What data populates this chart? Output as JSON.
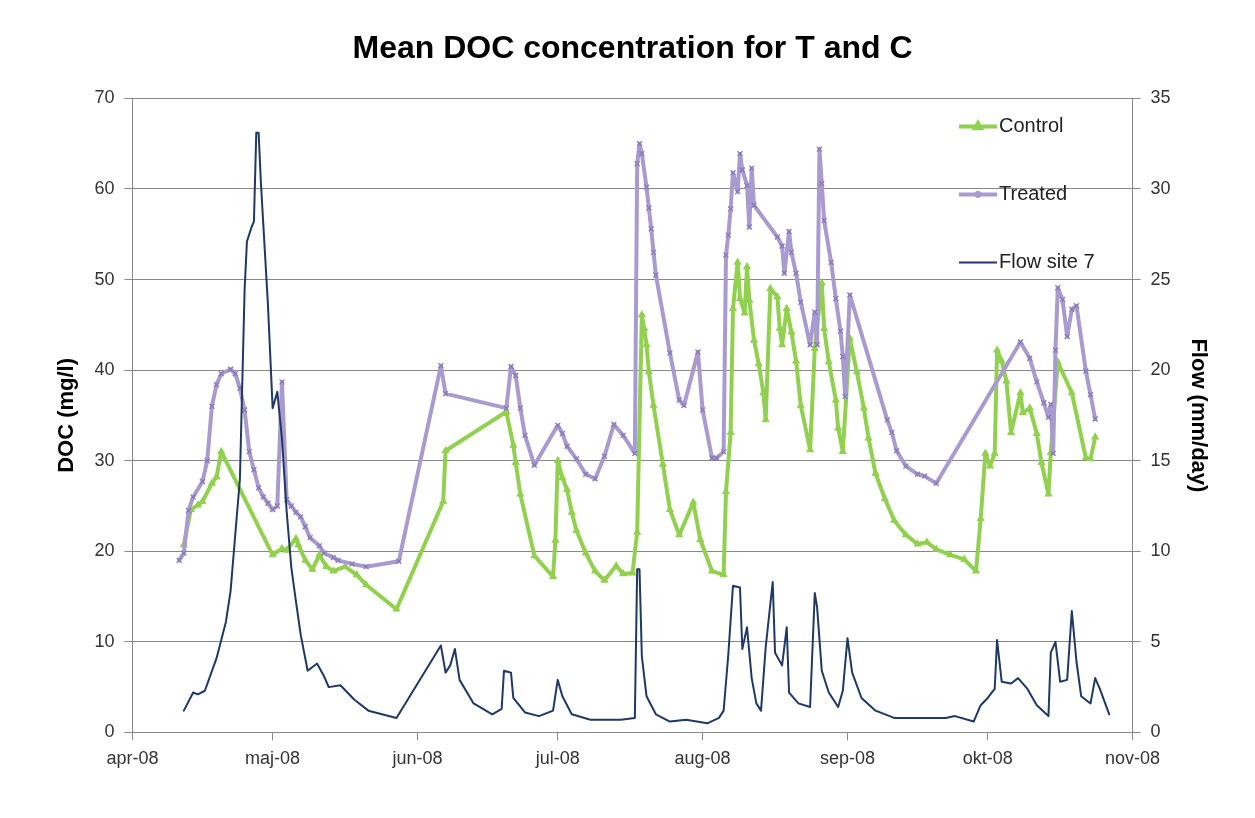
{
  "chart_data": {
    "type": "line",
    "title": "Mean DOC concentration for T and C",
    "ylabel": "DOC (mg/l)",
    "y2label": "Flow (mm/day)",
    "xlim": [
      "2008-04-01",
      "2008-11-01"
    ],
    "xticks": [
      {
        "value": "2008-04-01",
        "label": "apr-08"
      },
      {
        "value": "2008-05-01",
        "label": "maj-08"
      },
      {
        "value": "2008-06-01",
        "label": "jun-08"
      },
      {
        "value": "2008-07-01",
        "label": "jul-08"
      },
      {
        "value": "2008-08-01",
        "label": "aug-08"
      },
      {
        "value": "2008-09-01",
        "label": "sep-08"
      },
      {
        "value": "2008-10-01",
        "label": "okt-08"
      },
      {
        "value": "2008-11-01",
        "label": "nov-08"
      }
    ],
    "ylim": [
      0,
      70
    ],
    "yticks": [
      0,
      10,
      20,
      30,
      40,
      50,
      60,
      70
    ],
    "y2lim": [
      0,
      35
    ],
    "y2ticks": [
      0,
      5,
      10,
      15,
      20,
      25,
      30,
      35
    ],
    "grid": "y",
    "legend": "top right",
    "series": [
      {
        "name": "Control",
        "color": "#92d050",
        "marker": "triangle",
        "x": [
          "2008-04-12",
          "2008-04-13T12:00",
          "2008-04-15",
          "2008-04-16",
          "2008-04-18",
          "2008-04-19",
          "2008-04-20",
          "2008-05-01",
          "2008-05-03",
          "2008-05-04",
          "2008-05-06",
          "2008-05-06T12:00",
          "2008-05-08",
          "2008-05-09T12:00",
          "2008-05-11",
          "2008-05-12T12:00",
          "2008-05-14",
          "2008-05-16T12:00",
          "2008-05-19",
          "2008-05-21",
          "2008-05-27T12:00",
          "2008-06-06T12:00",
          "2008-06-07",
          "2008-06-20",
          "2008-06-21T12:00",
          "2008-06-22",
          "2008-06-23",
          "2008-06-26",
          "2008-06-30",
          "2008-06-30T12:00",
          "2008-07-01",
          "2008-07-02",
          "2008-07-03",
          "2008-07-04",
          "2008-07-05",
          "2008-07-07",
          "2008-07-09",
          "2008-07-11",
          "2008-07-13T12:00",
          "2008-07-15",
          "2008-07-17",
          "2008-07-18",
          "2008-07-19",
          "2008-07-19T12:00",
          "2008-07-20",
          "2008-07-20T12:00",
          "2008-07-21T12:00",
          "2008-07-23T12:00",
          "2008-07-25",
          "2008-07-27",
          "2008-07-30",
          "2008-07-31T12:00",
          "2008-08-03",
          "2008-08-05T12:00",
          "2008-08-06",
          "2008-08-07",
          "2008-08-07T12:00",
          "2008-08-08T12:00",
          "2008-08-09",
          "2008-08-10",
          "2008-08-10T12:00",
          "2008-08-11",
          "2008-08-12",
          "2008-08-13",
          "2008-08-14",
          "2008-08-14T12:00",
          "2008-08-15T12:00",
          "2008-08-17",
          "2008-08-17T12:00",
          "2008-08-18",
          "2008-08-19",
          "2008-08-20",
          "2008-08-21",
          "2008-08-22",
          "2008-08-24",
          "2008-08-25",
          "2008-08-26T12:00",
          "2008-08-27",
          "2008-08-28",
          "2008-08-29T12:00",
          "2008-08-30",
          "2008-08-31",
          "2008-09-01T12:00",
          "2008-09-03",
          "2008-09-04T12:00",
          "2008-09-05T12:00",
          "2008-09-07",
          "2008-09-09",
          "2008-09-11",
          "2008-09-13T12:00",
          "2008-09-16",
          "2008-09-18",
          "2008-09-20",
          "2008-09-23",
          "2008-09-26",
          "2008-09-28T12:00",
          "2008-09-29T12:00",
          "2008-09-30T12:00",
          "2008-10-01T12:00",
          "2008-10-02T12:00",
          "2008-10-03",
          "2008-10-04",
          "2008-10-05",
          "2008-10-06",
          "2008-10-08",
          "2008-10-08T12:00",
          "2008-10-10",
          "2008-10-11T12:00",
          "2008-10-12T12:00",
          "2008-10-14",
          "2008-10-14T12:00",
          "2008-10-16",
          "2008-10-19",
          "2008-10-22",
          "2008-10-23",
          "2008-10-24"
        ],
        "values": [
          20.7,
          24.6,
          25.1,
          25.5,
          27.5,
          28.2,
          31,
          19.6,
          20.3,
          20.1,
          21.4,
          20.7,
          19,
          18,
          19.6,
          18.3,
          17.8,
          18.3,
          17.4,
          16.3,
          13.6,
          25.5,
          31.1,
          35.4,
          31.7,
          29.8,
          26.3,
          19.5,
          17.2,
          21.2,
          30,
          28.1,
          26.8,
          24.3,
          22.3,
          19.8,
          17.8,
          16.8,
          18.4,
          17.5,
          17.6,
          22.1,
          46.1,
          44.6,
          42.8,
          39.8,
          36.1,
          29.6,
          24.6,
          21.8,
          25.4,
          21.3,
          17.8,
          17.4,
          26.6,
          33.1,
          46.8,
          51.9,
          47.9,
          46.3,
          51.4,
          47.7,
          43.3,
          40.7,
          37.5,
          34.5,
          49,
          48.1,
          44.6,
          42.8,
          46.8,
          44.2,
          41,
          36.1,
          31.2,
          42.4,
          49.6,
          44.6,
          40.9,
          36.7,
          33.6,
          31,
          43.5,
          39.8,
          35.8,
          32.5,
          28.6,
          25.8,
          23.4,
          21.8,
          20.8,
          21,
          20.2,
          19.6,
          19.1,
          17.8,
          23.6,
          30.8,
          29.4,
          30.8,
          42.2,
          41,
          38.8,
          33.1,
          37.5,
          35.3,
          35.8,
          33,
          29.8,
          26.3,
          30.9,
          40.9,
          37.5,
          30.3,
          30.2,
          32.6
        ]
      },
      {
        "name": "Treated",
        "color": "#a99bcf",
        "marker": "cross",
        "x": [
          "2008-04-11",
          "2008-04-12",
          "2008-04-13",
          "2008-04-14",
          "2008-04-16",
          "2008-04-17",
          "2008-04-18",
          "2008-04-19",
          "2008-04-20",
          "2008-04-22",
          "2008-04-23",
          "2008-04-24",
          "2008-04-25",
          "2008-04-26",
          "2008-04-27",
          "2008-04-28",
          "2008-04-29",
          "2008-04-30",
          "2008-05-01",
          "2008-05-02",
          "2008-05-03",
          "2008-05-04",
          "2008-05-05",
          "2008-05-06",
          "2008-05-07",
          "2008-05-08",
          "2008-05-09",
          "2008-05-11",
          "2008-05-12",
          "2008-05-14",
          "2008-05-15",
          "2008-05-18",
          "2008-05-21",
          "2008-05-28",
          "2008-06-06",
          "2008-06-07",
          "2008-06-20",
          "2008-06-21",
          "2008-06-22",
          "2008-06-23",
          "2008-06-24",
          "2008-06-26",
          "2008-07-01",
          "2008-07-02",
          "2008-07-03",
          "2008-07-05",
          "2008-07-07",
          "2008-07-09",
          "2008-07-11",
          "2008-07-13",
          "2008-07-15",
          "2008-07-17T12:00",
          "2008-07-18",
          "2008-07-18T12:00",
          "2008-07-19",
          "2008-07-20",
          "2008-07-20T12:00",
          "2008-07-21",
          "2008-07-21T12:00",
          "2008-07-22",
          "2008-07-25",
          "2008-07-27",
          "2008-07-28",
          "2008-07-31",
          "2008-08-01",
          "2008-08-03",
          "2008-08-04",
          "2008-08-05T12:00",
          "2008-08-06",
          "2008-08-06T12:00",
          "2008-08-07",
          "2008-08-07T12:00",
          "2008-08-08T12:00",
          "2008-08-09",
          "2008-08-09T12:00",
          "2008-08-10T12:00",
          "2008-08-11",
          "2008-08-11T12:00",
          "2008-08-12",
          "2008-08-17",
          "2008-08-18",
          "2008-08-18T12:00",
          "2008-08-19T12:00",
          "2008-08-20",
          "2008-08-21",
          "2008-08-22",
          "2008-08-24",
          "2008-08-25",
          "2008-08-25T12:00",
          "2008-08-26",
          "2008-08-26T12:00",
          "2008-08-27",
          "2008-08-28T12:00",
          "2008-08-29T12:00",
          "2008-08-30T12:00",
          "2008-08-31",
          "2008-08-31T12:00",
          "2008-09-01T12:00",
          "2008-09-09T12:00",
          "2008-09-10T12:00",
          "2008-09-11T12:00",
          "2008-09-13T12:00",
          "2008-09-16",
          "2008-09-17T12:00",
          "2008-09-20",
          "2008-10-08",
          "2008-10-10",
          "2008-10-11T12:00",
          "2008-10-13",
          "2008-10-14",
          "2008-10-14T12:00",
          "2008-10-15",
          "2008-10-15T12:00",
          "2008-10-16",
          "2008-10-17",
          "2008-10-18",
          "2008-10-19",
          "2008-10-20",
          "2008-10-22",
          "2008-10-23",
          "2008-10-24"
        ],
        "values": [
          19,
          19.8,
          24.5,
          26,
          27.7,
          30,
          36,
          38.4,
          39.6,
          40.1,
          39.6,
          38,
          35.6,
          31,
          29,
          27,
          26,
          25.3,
          24.6,
          25,
          38.7,
          25.7,
          25,
          24.3,
          23.8,
          22.7,
          21.5,
          20.6,
          19.8,
          19.3,
          19,
          18.6,
          18.3,
          18.9,
          40.5,
          37.4,
          35.8,
          40.4,
          39.4,
          35.8,
          32.8,
          29.5,
          33.9,
          33,
          31.6,
          30.2,
          28.5,
          28,
          30.5,
          34,
          32.8,
          30.8,
          62.8,
          65,
          63.9,
          60.2,
          57.9,
          55.6,
          53,
          50.5,
          41.9,
          36.7,
          36.1,
          42,
          35.6,
          30.3,
          30.3,
          31,
          52.7,
          54.9,
          57.8,
          61.8,
          59.7,
          63.9,
          62.1,
          60.4,
          55.8,
          62.3,
          58.2,
          54.7,
          53.7,
          50.7,
          55.3,
          53,
          50.7,
          47.5,
          42.8,
          46.4,
          42.8,
          64.4,
          60.6,
          56.5,
          51.9,
          47.9,
          44.3,
          41.5,
          37.1,
          48.3,
          34.5,
          33.1,
          31.1,
          29.4,
          28.5,
          28.3,
          27.5,
          43.1,
          41.3,
          38.7,
          36.4,
          34.8,
          36.2,
          30.8,
          42.2,
          49.1,
          47.8,
          43.7,
          46.7,
          47.1,
          39.9,
          37.3,
          34.6
        ]
      },
      {
        "name": "Flow site 7",
        "color": "#1f3864",
        "marker": "none",
        "axis": "y2",
        "x": [
          "2008-04-12",
          "2008-04-14",
          "2008-04-15",
          "2008-04-16T12:00",
          "2008-04-19",
          "2008-04-21",
          "2008-04-22",
          "2008-04-24",
          "2008-04-25",
          "2008-04-25T12:00",
          "2008-04-26T12:00",
          "2008-04-27",
          "2008-04-27T12:00",
          "2008-04-28",
          "2008-04-28T12:00",
          "2008-04-30",
          "2008-05-01",
          "2008-05-02",
          "2008-05-03",
          "2008-05-04",
          "2008-05-05",
          "2008-05-06",
          "2008-05-07",
          "2008-05-08T12:00",
          "2008-05-10T12:00",
          "2008-05-12",
          "2008-05-13",
          "2008-05-15T12:00",
          "2008-05-18T12:00",
          "2008-05-21T12:00",
          "2008-05-27T12:00",
          "2008-06-06",
          "2008-06-07",
          "2008-06-08",
          "2008-06-09",
          "2008-06-10",
          "2008-06-13",
          "2008-06-17",
          "2008-06-19",
          "2008-06-19T12:00",
          "2008-06-21",
          "2008-06-21T12:00",
          "2008-06-24",
          "2008-06-27",
          "2008-06-30",
          "2008-07-01",
          "2008-07-02",
          "2008-07-04",
          "2008-07-08",
          "2008-07-11T12:00",
          "2008-07-14T12:00",
          "2008-07-17T12:00",
          "2008-07-18",
          "2008-07-18T12:00",
          "2008-07-19",
          "2008-07-20",
          "2008-07-22",
          "2008-07-25",
          "2008-07-28T12:00",
          "2008-08-02",
          "2008-08-04T12:00",
          "2008-08-05T12:00",
          "2008-08-06T12:00",
          "2008-08-07T12:00",
          "2008-08-09",
          "2008-08-09T12:00",
          "2008-08-10T12:00",
          "2008-08-11T12:00",
          "2008-08-12T12:00",
          "2008-08-13T12:00",
          "2008-08-14T12:00",
          "2008-08-16",
          "2008-08-16T12:00",
          "2008-08-18",
          "2008-08-19",
          "2008-08-19T12:00",
          "2008-08-21T12:00",
          "2008-08-24",
          "2008-08-25",
          "2008-08-25T12:00",
          "2008-08-26T12:00",
          "2008-08-28",
          "2008-08-30",
          "2008-08-31",
          "2008-09-01",
          "2008-09-02",
          "2008-09-04",
          "2008-09-07",
          "2008-09-11",
          "2008-09-22",
          "2008-09-24",
          "2008-09-28",
          "2008-09-29T12:00",
          "2008-10-01",
          "2008-10-02T12:00",
          "2008-10-03",
          "2008-10-04",
          "2008-10-06",
          "2008-10-07T12:00",
          "2008-10-09T12:00",
          "2008-10-11T12:00",
          "2008-10-14",
          "2008-10-14T12:00",
          "2008-10-15T12:00",
          "2008-10-16T12:00",
          "2008-10-18",
          "2008-10-19",
          "2008-10-20",
          "2008-10-21",
          "2008-10-23",
          "2008-10-24",
          "2008-10-25",
          "2008-10-27"
        ],
        "values": [
          1.2,
          2.2,
          2.1,
          2.3,
          4.1,
          6.1,
          7.8,
          14,
          24.4,
          27.1,
          27.9,
          28.2,
          33.1,
          33.1,
          30.3,
          23.6,
          17.9,
          18.8,
          16.2,
          12.2,
          9.1,
          7.2,
          5.4,
          3.4,
          3.8,
          3.1,
          2.5,
          2.6,
          1.8,
          1.2,
          0.8,
          4.8,
          3.3,
          3.7,
          4.6,
          2.9,
          1.6,
          1,
          1.3,
          3.4,
          3.3,
          1.9,
          1.1,
          0.9,
          1.2,
          2.9,
          2,
          1,
          0.7,
          0.7,
          0.7,
          0.8,
          9,
          9,
          4.2,
          2,
          1,
          0.6,
          0.7,
          0.5,
          0.8,
          1.2,
          4.3,
          8.1,
          8,
          4.6,
          5.8,
          3,
          1.6,
          1.2,
          4.7,
          8.3,
          4.4,
          3.7,
          5.8,
          2.2,
          1.6,
          1.4,
          7.7,
          6.9,
          3.4,
          2.2,
          1.4,
          2.3,
          5.2,
          3.3,
          1.9,
          1.2,
          0.8,
          0.8,
          0.9,
          0.6,
          1.5,
          1.9,
          2.4,
          5.1,
          2.8,
          2.7,
          3,
          2.4,
          1.5,
          0.9,
          4.4,
          5,
          2.8,
          2.9,
          6.7,
          3.9,
          2,
          1.6,
          3,
          2.4,
          1
        ]
      }
    ]
  }
}
